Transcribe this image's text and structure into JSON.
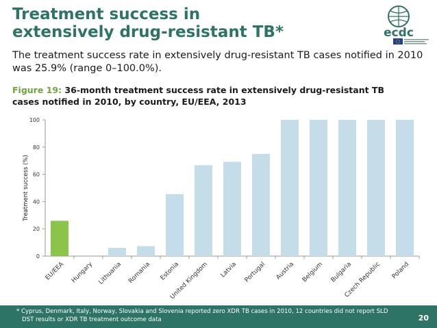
{
  "slide": {
    "title_line1": "Treatment success in",
    "title_line2": "extensively drug-resistant TB*",
    "intro": "The treatment success rate in extensively drug-resistant TB cases notified in 2010 was 25.9% (range 0–100.0%).",
    "figure_label": "Figure 19:",
    "figure_caption": "36-month treatment success rate in extensively drug-resistant TB cases notified in 2010, by country, EU/EEA, 2013",
    "footnote_line1": "* Cyprus, Denmark, Italy, Norway, Slovakia and Slovenia reported zero XDR TB cases in 2010, 12 countries did not report SLD",
    "footnote_line2": "DST results or XDR TB treatment outcome data",
    "page_number": "20"
  },
  "logo": {
    "text": "ecdc",
    "colors": {
      "globe": "#2e7466",
      "text": "#2e7466",
      "flag": "#1f3f8f",
      "stars": "#f2c200"
    }
  },
  "colors": {
    "title": "#2e7466",
    "figure_label": "#6ea63a",
    "highlight_bar": "#8cc34b",
    "bar": "#c5dde9",
    "footer": "#2e7466"
  },
  "chart_data": {
    "type": "bar",
    "title": "36-month treatment success rate in extensively drug-resistant TB cases notified in 2010, by country, EU/EEA, 2013",
    "xlabel": "",
    "ylabel": "Treatment success (%)",
    "ylim": [
      0,
      100
    ],
    "yticks": [
      0,
      20,
      40,
      60,
      80,
      100
    ],
    "grid": false,
    "categories": [
      "EU/EEA",
      "Hungary",
      "Lithuania",
      "Romania",
      "Estonia",
      "United Kingdom",
      "Latvia",
      "Portugal",
      "Austria",
      "Belgium",
      "Bulgaria",
      "Czech Republic",
      "Poland"
    ],
    "values": [
      25.9,
      0,
      6,
      7.3,
      45.5,
      66.7,
      69.2,
      75,
      100,
      100,
      100,
      100,
      100
    ],
    "highlight": [
      "EU/EEA"
    ]
  }
}
